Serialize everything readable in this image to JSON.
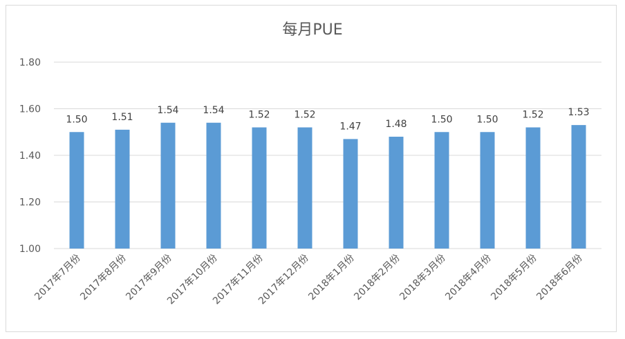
{
  "chart_data": {
    "type": "bar",
    "title": "每月PUE",
    "categories": [
      "2017年7月份",
      "2017年8月份",
      "2017年9月份",
      "2017年10月份",
      "2017年11月份",
      "2017年12月份",
      "2018年1月份",
      "2018年2月份",
      "2018年3月份",
      "2018年4月份",
      "2018年5月份",
      "2018年6月份"
    ],
    "values": [
      1.5,
      1.51,
      1.54,
      1.54,
      1.52,
      1.52,
      1.47,
      1.48,
      1.5,
      1.5,
      1.52,
      1.53
    ],
    "data_labels": [
      "1.50",
      "1.51",
      "1.54",
      "1.54",
      "1.52",
      "1.52",
      "1.47",
      "1.48",
      "1.50",
      "1.50",
      "1.52",
      "1.53"
    ],
    "y_ticks": [
      "1.00",
      "1.20",
      "1.40",
      "1.60",
      "1.80"
    ],
    "y_tick_values": [
      1.0,
      1.2,
      1.4,
      1.6,
      1.8
    ],
    "ylim": [
      1.0,
      1.8
    ],
    "grid": true,
    "bar_color": "#5b9bd5",
    "legend": "none"
  }
}
